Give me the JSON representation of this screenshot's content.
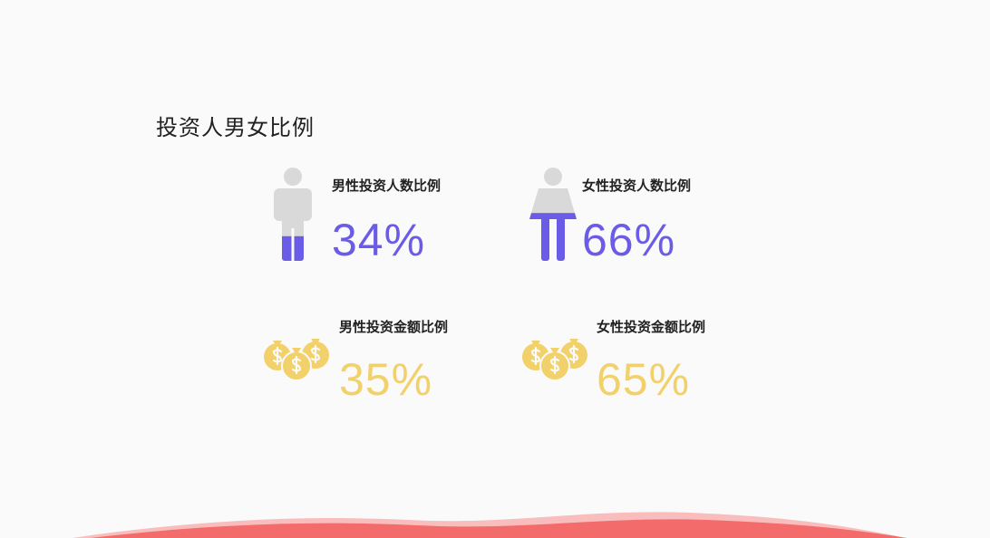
{
  "title": "投资人男女比例",
  "colors": {
    "purple": "#6b5ce7",
    "gold": "#f2d16b",
    "gray": "#d9d9d9",
    "wave": "#f36b6b"
  },
  "stats": [
    {
      "label": "男性投资人数比例",
      "value": "34%",
      "fraction": 0.34,
      "icon": "male-person-icon"
    },
    {
      "label": "女性投资人数比例",
      "value": "66%",
      "fraction": 0.66,
      "icon": "female-person-icon"
    },
    {
      "label": "男性投资金额比例",
      "value": "35%",
      "icon": "money-bags-icon"
    },
    {
      "label": "女性投资金额比例",
      "value": "65%",
      "icon": "money-bags-icon"
    }
  ]
}
